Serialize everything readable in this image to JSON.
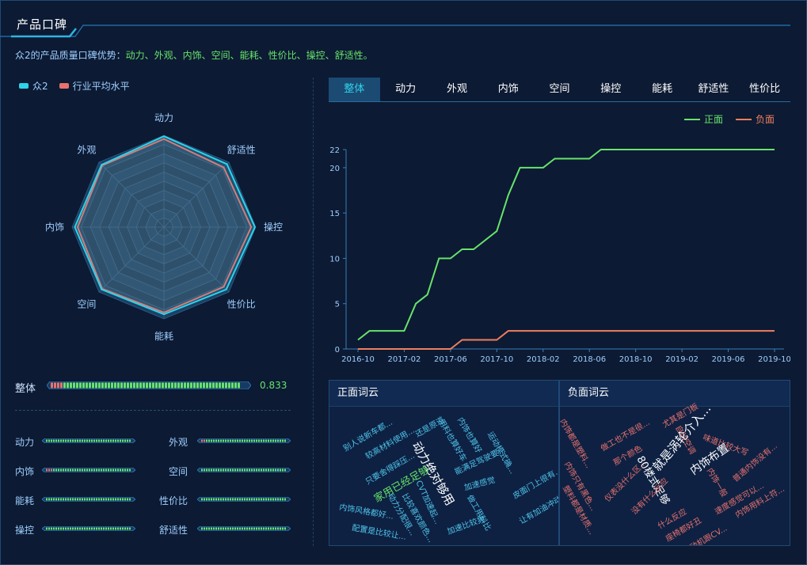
{
  "header": {
    "title": "产品口碑",
    "summary_prefix": "众2的产品质量口碑优势：",
    "summary_highlight": "动力、外观、内饰、空间、能耗、性价比、操控、舒适性。"
  },
  "legend": {
    "product": "众2",
    "average": "行业平均水平",
    "product_color": "#2fd3e8",
    "average_color": "#e7726d"
  },
  "radar": {
    "axes": [
      "动力",
      "舒适性",
      "操控",
      "性价比",
      "能耗",
      "空间",
      "内饰",
      "外观"
    ],
    "product_values": [
      0.99,
      0.97,
      0.99,
      0.96,
      0.95,
      0.96,
      0.97,
      0.96
    ],
    "average_values": [
      0.96,
      0.92,
      0.95,
      0.92,
      0.93,
      0.95,
      0.94,
      0.95
    ]
  },
  "overall": {
    "label": "整体",
    "value": "0.833",
    "fill": 0.96,
    "neg": 0.07
  },
  "metrics": [
    {
      "label": "动力",
      "fill": 0.99,
      "neg": 0.0
    },
    {
      "label": "外观",
      "fill": 0.99,
      "neg": 0.05
    },
    {
      "label": "内饰",
      "fill": 0.99,
      "neg": 0.07
    },
    {
      "label": "空间",
      "fill": 0.99,
      "neg": 0.0
    },
    {
      "label": "能耗",
      "fill": 0.99,
      "neg": 0.0
    },
    {
      "label": "性价比",
      "fill": 0.99,
      "neg": 0.0
    },
    {
      "label": "操控",
      "fill": 0.99,
      "neg": 0.0
    },
    {
      "label": "舒适性",
      "fill": 0.99,
      "neg": 0.0
    }
  ],
  "tabs": [
    "整体",
    "动力",
    "外观",
    "内饰",
    "空间",
    "操控",
    "能耗",
    "舒适性",
    "性价比"
  ],
  "active_tab": 0,
  "chart_data": {
    "type": "line",
    "title": "",
    "x": [
      "2016-10",
      "2016-11",
      "2016-12",
      "2017-01",
      "2017-02",
      "2017-03",
      "2017-04",
      "2017-05",
      "2017-06",
      "2017-07",
      "2017-08",
      "2017-09",
      "2017-10",
      "2017-11",
      "2017-12",
      "2018-01",
      "2018-02",
      "2018-03",
      "2018-04",
      "2018-05",
      "2018-06",
      "2018-07",
      "2018-08",
      "2018-09",
      "2018-10",
      "2018-11",
      "2018-12",
      "2019-01",
      "2019-02",
      "2019-03",
      "2019-04",
      "2019-05",
      "2019-06",
      "2019-07",
      "2019-08",
      "2019-09",
      "2019-10"
    ],
    "x_ticks": [
      "2016-10",
      "2017-02",
      "2017-06",
      "2017-10",
      "2018-02",
      "2018-06",
      "2018-10",
      "2019-02",
      "2019-06",
      "2019-10"
    ],
    "y_ticks": [
      0,
      5,
      10,
      15,
      20,
      22
    ],
    "ylim": [
      0,
      22
    ],
    "series": [
      {
        "name": "正面",
        "color": "#67e36b",
        "values": [
          1,
          2,
          2,
          2,
          2,
          5,
          6,
          10,
          10,
          11,
          11,
          12,
          13,
          17,
          20,
          20,
          20,
          21,
          21,
          21,
          21,
          22,
          22,
          22,
          22,
          22,
          22,
          22,
          22,
          22,
          22,
          22,
          22,
          22,
          22,
          22,
          22
        ]
      },
      {
        "name": "负面",
        "color": "#f07e5e",
        "values": [
          0,
          0,
          0,
          0,
          0,
          0,
          0,
          0,
          0,
          1,
          1,
          1,
          1,
          2,
          2,
          2,
          2,
          2,
          2,
          2,
          2,
          2,
          2,
          2,
          2,
          2,
          2,
          2,
          2,
          2,
          2,
          2,
          2,
          2,
          2,
          2,
          2
        ]
      }
    ]
  },
  "positive_cloud": {
    "title": "正面词云",
    "words": [
      {
        "text": "别人说新车都...",
        "color": "#4fc3e8"
      },
      {
        "text": "还是原道",
        "color": "#4fc3e8"
      },
      {
        "text": "较高材料使用...",
        "color": "#4fc3e8"
      },
      {
        "text": "只要舍得踩压...",
        "color": "#4fc3e8"
      },
      {
        "text": "用料也算好车",
        "color": "#4fc3e8"
      },
      {
        "text": "内饰也算好",
        "color": "#4fc3e8"
      },
      {
        "text": "运动模式确...",
        "color": "#4fc3e8"
      },
      {
        "text": "动力绝对够用",
        "color": "#ffffff"
      },
      {
        "text": "能满足驾驶要...",
        "color": "#4fc3e8"
      },
      {
        "text": "家用已经足够",
        "color": "#67e36b"
      },
      {
        "text": "加速感觉",
        "color": "#4fc3e8"
      },
      {
        "text": "CVT加速起...",
        "color": "#4fc3e8"
      },
      {
        "text": "皮面门上很有...",
        "color": "#4fc3e8"
      },
      {
        "text": "内饰风格都好...",
        "color": "#4fc3e8"
      },
      {
        "text": "动力分配很...",
        "color": "#4fc3e8"
      },
      {
        "text": "比较喜欢颜色...",
        "color": "#4fc3e8"
      },
      {
        "text": "做工用料比",
        "color": "#4fc3e8"
      },
      {
        "text": "配置是比较让...",
        "color": "#4fc3e8"
      },
      {
        "text": "加速比较爽",
        "color": "#4fc3e8"
      },
      {
        "text": "让有加油冲动",
        "color": "#4fc3e8"
      }
    ]
  },
  "negative_cloud": {
    "title": "负面词云",
    "words": [
      {
        "text": "内饰都是塑料...",
        "color": "#e7726d"
      },
      {
        "text": "做工也不是很...",
        "color": "#e7726d"
      },
      {
        "text": "尤其是门板",
        "color": "#e7726d"
      },
      {
        "text": "自动空调",
        "color": "#e7726d"
      },
      {
        "text": "味道比较大写",
        "color": "#e7726d"
      },
      {
        "text": "那个颜色",
        "color": "#e7726d"
      },
      {
        "text": "就是涡轮介入...",
        "color": "#ffffff"
      },
      {
        "text": "80楼式足够",
        "color": "#ffffff"
      },
      {
        "text": "内饰布置",
        "color": "#ffffff"
      },
      {
        "text": "没有什么反应",
        "color": "#e7726d"
      },
      {
        "text": "普通内饰没有...",
        "color": "#e7726d"
      },
      {
        "text": "内饰只有黑色...",
        "color": "#e7726d"
      },
      {
        "text": "仪表没什么区...",
        "color": "#e7726d"
      },
      {
        "text": "什么反应",
        "color": "#e7726d"
      },
      {
        "text": "内饰一般",
        "color": "#e7726d"
      },
      {
        "text": "塑料都是材质...",
        "color": "#e7726d"
      },
      {
        "text": "座椅都好丑",
        "color": "#e7726d"
      },
      {
        "text": "速度感觉可以...",
        "color": "#e7726d"
      },
      {
        "text": "发动机跟CV...",
        "color": "#e7726d"
      },
      {
        "text": "内饰用料上符...",
        "color": "#e7726d"
      }
    ]
  }
}
